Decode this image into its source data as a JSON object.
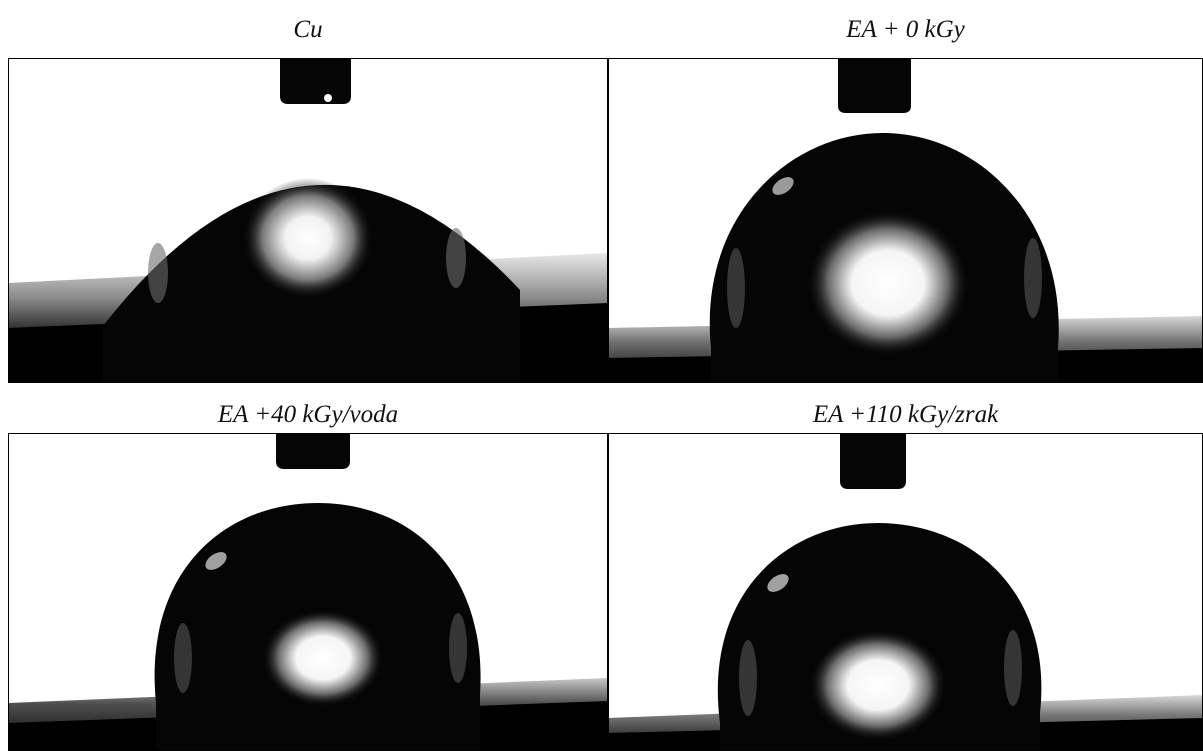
{
  "panels": [
    {
      "caption": "Cu"
    },
    {
      "caption": "EA + 0 kGy"
    },
    {
      "caption": "EA +40 kGy/voda"
    },
    {
      "caption": "EA +110 kGy/zrak"
    }
  ]
}
